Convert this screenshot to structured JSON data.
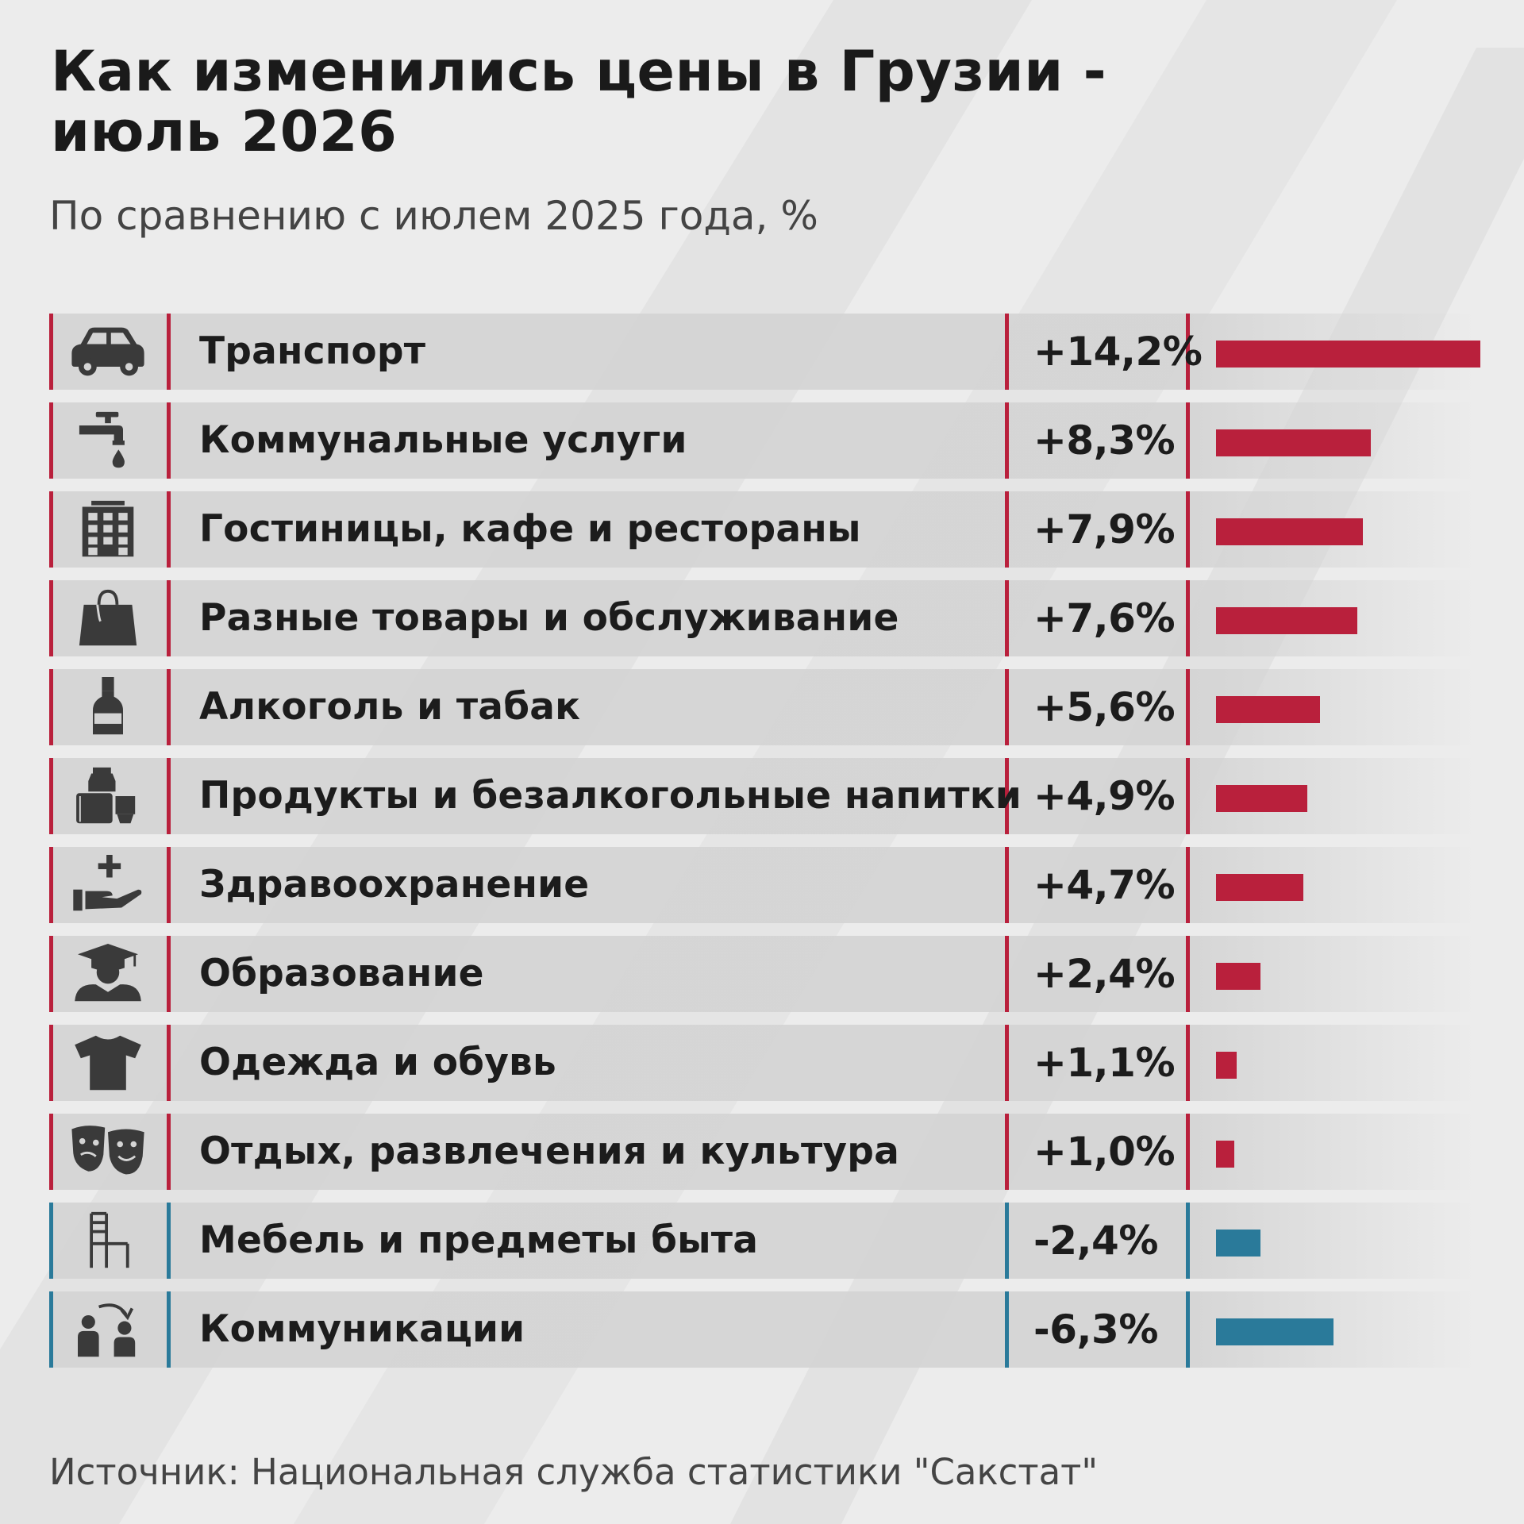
{
  "header": {
    "title_line1": "Как изменились цены в Грузии -",
    "title_line2": "июль 2026",
    "subtitle": "По сравнению с июлем 2025 года, %"
  },
  "footer": {
    "source": "Источник: Национальная служба статистики \"Сакстат\""
  },
  "colors": {
    "positive": "#b9203c",
    "negative": "#2a7a9a",
    "text": "#1c1c1c",
    "icon": "#3a3a3a",
    "row_background": "#d4d4d4",
    "page_background": "#ececec"
  },
  "chart_data": {
    "type": "bar",
    "orientation": "horizontal",
    "title": "Как изменились цены в Грузии - июль 2026",
    "subtitle": "По сравнению с июлем 2025 года, %",
    "categories": [
      "Транспорт",
      "Коммунальные услуги",
      "Гостиницы, кафе и рестораны",
      "Разные товары и обслуживание",
      "Алкоголь и табак",
      "Продукты и безалкогольные напитки",
      "Здравоохранение",
      "Образование",
      "Одежда и обувь",
      "Отдых, развлечения и культура",
      "Мебель и предметы быта",
      "Коммуникации"
    ],
    "values": [
      14.2,
      8.3,
      7.9,
      7.6,
      5.6,
      4.9,
      4.7,
      2.4,
      1.1,
      1.0,
      -2.4,
      -6.3
    ],
    "value_labels": [
      "+14,2%",
      "+8,3%",
      "+7,9%",
      "+7,6%",
      "+5,6%",
      "+4,9%",
      "+4,7%",
      "+2,4%",
      "+1,1%",
      "+1,0%",
      "-2,4%",
      "-6,3%"
    ],
    "icons": [
      "car-icon",
      "faucet-icon",
      "hotel-building-icon",
      "shopping-bag-icon",
      "bottle-icon",
      "groceries-icon",
      "healthcare-hand-icon",
      "graduate-icon",
      "tshirt-icon",
      "theater-masks-icon",
      "chair-icon",
      "communication-people-icon"
    ],
    "bar_magnitude_max": 14.2
  }
}
